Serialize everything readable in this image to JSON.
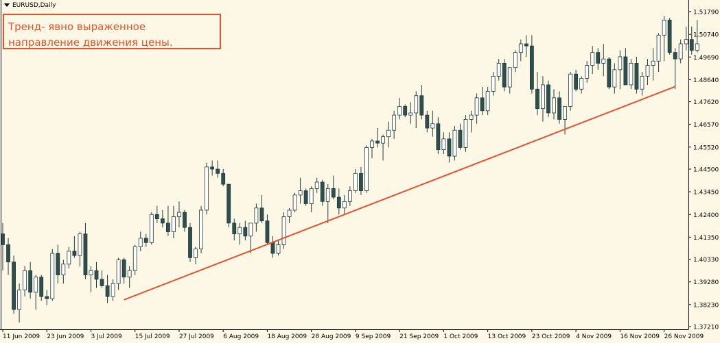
{
  "window": {
    "symbol_label": "EURUSD,Daily",
    "annotation": "Тренд- явно выраженное направление движения цены."
  },
  "colors": {
    "background": "#fdf8e6",
    "bull_body": "#ffffff",
    "bear_body": "#2f4f4f",
    "candle_outline": "#1f3a3a",
    "trendline": "#e8502a",
    "annotation": "#e8502a",
    "axis": "#000000"
  },
  "chart_data": {
    "type": "candlestick",
    "title": "EURUSD,Daily",
    "ylim": [
      1.3721,
      1.5179
    ],
    "y_ticks": [
      "1.51790",
      "1.50740",
      "1.49690",
      "1.48640",
      "1.47620",
      "1.46570",
      "1.45520",
      "1.44500",
      "1.43450",
      "1.42400",
      "1.41350",
      "1.40330",
      "1.39280",
      "1.38230",
      "1.37210"
    ],
    "x_tick_labels": [
      "11 Jun 2009",
      "23 Jun 2009",
      "3 Jul 2009",
      "15 Jul 2009",
      "27 Jul 2009",
      "6 Aug 2009",
      "18 Aug 2009",
      "28 Aug 2009",
      "9 Sep 2009",
      "21 Sep 2009",
      "1 Oct 2009",
      "13 Oct 2009",
      "23 Oct 2009",
      "4 Nov 2009",
      "16 Nov 2009",
      "26 Nov 2009"
    ],
    "x_tick_bar_index": [
      0,
      8,
      16,
      24,
      32,
      40,
      48,
      56,
      64,
      72,
      80,
      88,
      96,
      104,
      112,
      120
    ],
    "grid": false,
    "bars": [
      [
        1.415,
        1.42,
        1.398,
        1.41
      ],
      [
        1.41,
        1.413,
        1.396,
        1.402
      ],
      [
        1.402,
        1.405,
        1.378,
        1.38
      ],
      [
        1.38,
        1.392,
        1.374,
        1.389
      ],
      [
        1.389,
        1.4,
        1.386,
        1.398
      ],
      [
        1.398,
        1.402,
        1.385,
        1.388
      ],
      [
        1.388,
        1.396,
        1.38,
        1.395
      ],
      [
        1.395,
        1.396,
        1.384,
        1.386
      ],
      [
        1.386,
        1.389,
        1.382,
        1.385
      ],
      [
        1.385,
        1.408,
        1.384,
        1.406
      ],
      [
        1.406,
        1.41,
        1.392,
        1.396
      ],
      [
        1.396,
        1.403,
        1.392,
        1.401
      ],
      [
        1.401,
        1.409,
        1.399,
        1.407
      ],
      [
        1.407,
        1.414,
        1.404,
        1.405
      ],
      [
        1.405,
        1.416,
        1.4,
        1.415
      ],
      [
        1.415,
        1.42,
        1.394,
        1.396
      ],
      [
        1.396,
        1.4,
        1.388,
        1.398
      ],
      [
        1.398,
        1.402,
        1.39,
        1.394
      ],
      [
        1.394,
        1.398,
        1.39,
        1.391
      ],
      [
        1.391,
        1.396,
        1.383,
        1.386
      ],
      [
        1.386,
        1.394,
        1.384,
        1.392
      ],
      [
        1.392,
        1.404,
        1.389,
        1.403
      ],
      [
        1.403,
        1.404,
        1.392,
        1.395
      ],
      [
        1.395,
        1.4,
        1.39,
        1.398
      ],
      [
        1.398,
        1.41,
        1.396,
        1.409
      ],
      [
        1.409,
        1.416,
        1.407,
        1.413
      ],
      [
        1.413,
        1.415,
        1.409,
        1.411
      ],
      [
        1.411,
        1.425,
        1.41,
        1.424
      ],
      [
        1.424,
        1.428,
        1.42,
        1.422
      ],
      [
        1.422,
        1.426,
        1.418,
        1.42
      ],
      [
        1.42,
        1.428,
        1.414,
        1.416
      ],
      [
        1.416,
        1.428,
        1.413,
        1.423
      ],
      [
        1.423,
        1.43,
        1.418,
        1.425
      ],
      [
        1.425,
        1.426,
        1.416,
        1.418
      ],
      [
        1.418,
        1.42,
        1.402,
        1.404
      ],
      [
        1.404,
        1.409,
        1.401,
        1.408
      ],
      [
        1.408,
        1.428,
        1.406,
        1.426
      ],
      [
        1.426,
        1.448,
        1.424,
        1.446
      ],
      [
        1.446,
        1.449,
        1.442,
        1.445
      ],
      [
        1.445,
        1.449,
        1.441,
        1.443
      ],
      [
        1.443,
        1.445,
        1.437,
        1.438
      ],
      [
        1.438,
        1.438,
        1.418,
        1.42
      ],
      [
        1.42,
        1.422,
        1.412,
        1.415
      ],
      [
        1.415,
        1.42,
        1.41,
        1.418
      ],
      [
        1.418,
        1.421,
        1.412,
        1.414
      ],
      [
        1.414,
        1.42,
        1.406,
        1.42
      ],
      [
        1.42,
        1.429,
        1.416,
        1.427
      ],
      [
        1.427,
        1.433,
        1.42,
        1.421
      ],
      [
        1.421,
        1.424,
        1.41,
        1.411
      ],
      [
        1.411,
        1.414,
        1.404,
        1.406
      ],
      [
        1.406,
        1.412,
        1.405,
        1.41
      ],
      [
        1.41,
        1.425,
        1.408,
        1.423
      ],
      [
        1.423,
        1.427,
        1.42,
        1.426
      ],
      [
        1.426,
        1.434,
        1.425,
        1.433
      ],
      [
        1.433,
        1.441,
        1.429,
        1.435
      ],
      [
        1.435,
        1.436,
        1.428,
        1.429
      ],
      [
        1.429,
        1.437,
        1.425,
        1.436
      ],
      [
        1.436,
        1.441,
        1.434,
        1.439
      ],
      [
        1.439,
        1.44,
        1.428,
        1.43
      ],
      [
        1.43,
        1.438,
        1.42,
        1.436
      ],
      [
        1.436,
        1.442,
        1.431,
        1.432
      ],
      [
        1.432,
        1.436,
        1.424,
        1.427
      ],
      [
        1.427,
        1.433,
        1.424,
        1.43
      ],
      [
        1.43,
        1.437,
        1.428,
        1.435
      ],
      [
        1.435,
        1.445,
        1.434,
        1.443
      ],
      [
        1.443,
        1.446,
        1.433,
        1.435
      ],
      [
        1.435,
        1.456,
        1.434,
        1.455
      ],
      [
        1.455,
        1.459,
        1.45,
        1.458
      ],
      [
        1.458,
        1.464,
        1.455,
        1.457
      ],
      [
        1.457,
        1.461,
        1.449,
        1.46
      ],
      [
        1.46,
        1.467,
        1.455,
        1.463
      ],
      [
        1.463,
        1.472,
        1.459,
        1.47
      ],
      [
        1.47,
        1.478,
        1.468,
        1.474
      ],
      [
        1.474,
        1.475,
        1.469,
        1.47
      ],
      [
        1.47,
        1.476,
        1.466,
        1.471
      ],
      [
        1.471,
        1.481,
        1.464,
        1.479
      ],
      [
        1.479,
        1.484,
        1.468,
        1.47
      ],
      [
        1.47,
        1.472,
        1.462,
        1.464
      ],
      [
        1.464,
        1.472,
        1.46,
        1.466
      ],
      [
        1.466,
        1.469,
        1.452,
        1.454
      ],
      [
        1.454,
        1.462,
        1.452,
        1.459
      ],
      [
        1.459,
        1.462,
        1.448,
        1.451
      ],
      [
        1.451,
        1.465,
        1.449,
        1.463
      ],
      [
        1.463,
        1.466,
        1.454,
        1.455
      ],
      [
        1.455,
        1.47,
        1.453,
        1.468
      ],
      [
        1.468,
        1.472,
        1.462,
        1.47
      ],
      [
        1.47,
        1.48,
        1.466,
        1.478
      ],
      [
        1.478,
        1.483,
        1.47,
        1.472
      ],
      [
        1.472,
        1.483,
        1.47,
        1.481
      ],
      [
        1.481,
        1.49,
        1.479,
        1.488
      ],
      [
        1.488,
        1.496,
        1.486,
        1.494
      ],
      [
        1.494,
        1.496,
        1.481,
        1.483
      ],
      [
        1.483,
        1.49,
        1.48,
        1.492
      ],
      [
        1.492,
        1.5,
        1.49,
        1.499
      ],
      [
        1.499,
        1.505,
        1.495,
        1.503
      ],
      [
        1.503,
        1.507,
        1.497,
        1.502
      ],
      [
        1.502,
        1.507,
        1.48,
        1.482
      ],
      [
        1.482,
        1.49,
        1.47,
        1.473
      ],
      [
        1.473,
        1.488,
        1.467,
        1.484
      ],
      [
        1.484,
        1.486,
        1.469,
        1.471
      ],
      [
        1.471,
        1.482,
        1.468,
        1.478
      ],
      [
        1.478,
        1.481,
        1.466,
        1.468
      ],
      [
        1.468,
        1.473,
        1.461,
        1.474
      ],
      [
        1.474,
        1.49,
        1.472,
        1.489
      ],
      [
        1.489,
        1.491,
        1.481,
        1.482
      ],
      [
        1.482,
        1.488,
        1.48,
        1.487
      ],
      [
        1.487,
        1.495,
        1.485,
        1.493
      ],
      [
        1.493,
        1.502,
        1.489,
        1.499
      ],
      [
        1.499,
        1.501,
        1.491,
        1.494
      ],
      [
        1.494,
        1.503,
        1.488,
        1.496
      ],
      [
        1.496,
        1.497,
        1.482,
        1.483
      ],
      [
        1.483,
        1.494,
        1.48,
        1.491
      ],
      [
        1.491,
        1.5,
        1.482,
        1.497
      ],
      [
        1.497,
        1.501,
        1.485,
        1.484
      ],
      [
        1.484,
        1.496,
        1.482,
        1.494
      ],
      [
        1.494,
        1.497,
        1.48,
        1.482
      ],
      [
        1.482,
        1.49,
        1.479,
        1.488
      ],
      [
        1.488,
        1.496,
        1.484,
        1.493
      ],
      [
        1.493,
        1.501,
        1.486,
        1.495
      ],
      [
        1.495,
        1.508,
        1.49,
        1.507
      ],
      [
        1.507,
        1.516,
        1.495,
        1.514
      ],
      [
        1.514,
        1.515,
        1.498,
        1.499
      ],
      [
        1.499,
        1.501,
        1.482,
        1.496
      ],
      [
        1.496,
        1.505,
        1.494,
        1.503
      ],
      [
        1.503,
        1.511,
        1.5,
        1.505
      ],
      [
        1.505,
        1.511,
        1.498,
        1.5
      ],
      [
        1.5,
        1.514,
        1.499,
        1.503
      ]
    ],
    "trendline": {
      "from": {
        "bar_index": 22,
        "price": 1.3845
      },
      "to": {
        "bar_index": 122,
        "price": 1.4832
      }
    }
  }
}
